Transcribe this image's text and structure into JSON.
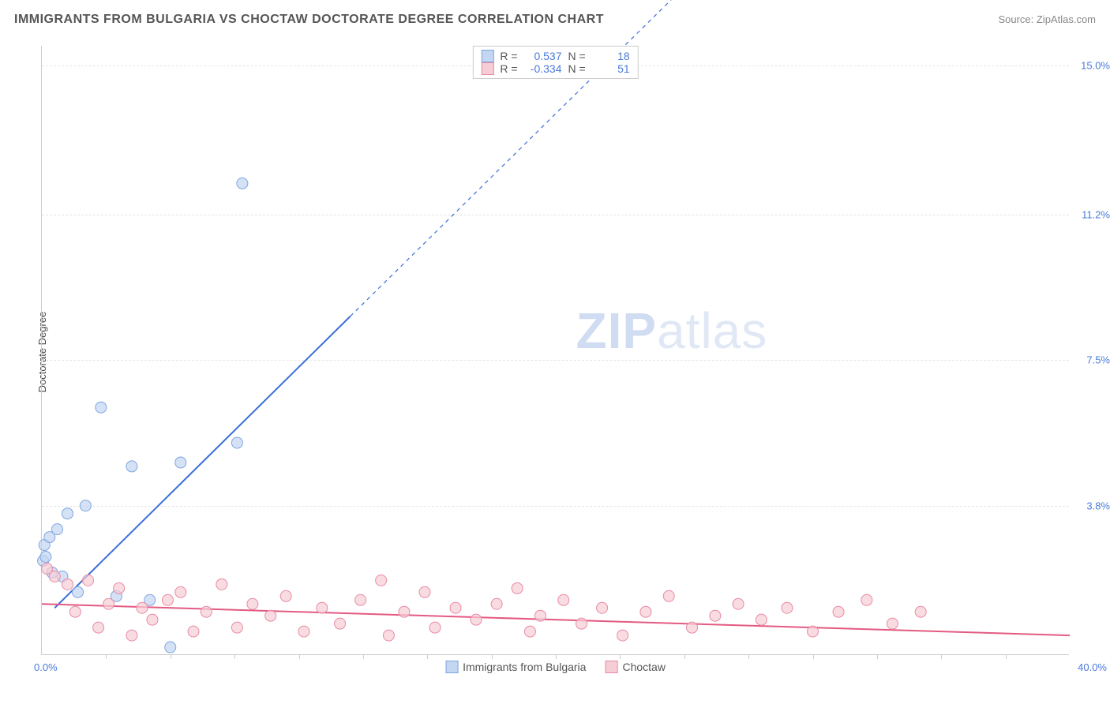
{
  "title": "IMMIGRANTS FROM BULGARIA VS CHOCTAW DOCTORATE DEGREE CORRELATION CHART",
  "source": "Source: ZipAtlas.com",
  "y_axis_label": "Doctorate Degree",
  "watermark_zip": "ZIP",
  "watermark_atlas": "atlas",
  "chart": {
    "type": "scatter",
    "background_color": "#ffffff",
    "grid_color": "#e5e5e5",
    "axis_color": "#cccccc",
    "tick_label_color": "#4a7bd8",
    "xlim": [
      0,
      40
    ],
    "ylim": [
      0,
      15.5
    ],
    "x_ticks_minor_step": 2.5,
    "y_gridlines": [
      3.8,
      7.5,
      11.2,
      15.0
    ],
    "y_tick_labels": [
      "3.8%",
      "7.5%",
      "11.2%",
      "15.0%"
    ],
    "x_min_label": "0.0%",
    "x_max_label": "40.0%",
    "marker_radius": 7,
    "marker_stroke_width": 1,
    "line_width": 2,
    "dashed_line_width": 1.2,
    "series": [
      {
        "name": "Immigrants from Bulgaria",
        "legend_label": "Immigrants from Bulgaria",
        "R": "0.537",
        "R_label": "R =",
        "N": "18",
        "N_label": "N =",
        "fill_color": "#c3d6f2",
        "stroke_color": "#7ea6e0",
        "line_color": "#3a6fd8",
        "marker": "circle",
        "points": [
          [
            0.05,
            2.4
          ],
          [
            0.1,
            2.8
          ],
          [
            0.3,
            3.0
          ],
          [
            0.15,
            2.5
          ],
          [
            0.6,
            3.2
          ],
          [
            1.0,
            3.6
          ],
          [
            1.4,
            1.6
          ],
          [
            1.7,
            3.8
          ],
          [
            2.3,
            6.3
          ],
          [
            2.9,
            1.5
          ],
          [
            3.5,
            4.8
          ],
          [
            4.2,
            1.4
          ],
          [
            5.0,
            0.2
          ],
          [
            5.4,
            4.9
          ],
          [
            7.6,
            5.4
          ],
          [
            7.8,
            12.0
          ],
          [
            0.4,
            2.1
          ],
          [
            0.8,
            2.0
          ]
        ],
        "regression": {
          "type": "linear",
          "x1": 0.5,
          "y1": 1.2,
          "x2": 25,
          "y2": 17.0,
          "solid_until_x": 12
        }
      },
      {
        "name": "Choctaw",
        "legend_label": "Choctaw",
        "R": "-0.334",
        "R_label": "R =",
        "N": "51",
        "N_label": "N =",
        "fill_color": "#f6cdd6",
        "stroke_color": "#e88ba3",
        "line_color": "#e35a82",
        "marker": "circle",
        "points": [
          [
            0.2,
            2.2
          ],
          [
            0.5,
            2.0
          ],
          [
            1.0,
            1.8
          ],
          [
            1.3,
            1.1
          ],
          [
            1.8,
            1.9
          ],
          [
            2.2,
            0.7
          ],
          [
            2.6,
            1.3
          ],
          [
            3.0,
            1.7
          ],
          [
            3.5,
            0.5
          ],
          [
            3.9,
            1.2
          ],
          [
            4.3,
            0.9
          ],
          [
            4.9,
            1.4
          ],
          [
            5.4,
            1.6
          ],
          [
            5.9,
            0.6
          ],
          [
            6.4,
            1.1
          ],
          [
            7.0,
            1.8
          ],
          [
            7.6,
            0.7
          ],
          [
            8.2,
            1.3
          ],
          [
            8.9,
            1.0
          ],
          [
            9.5,
            1.5
          ],
          [
            10.2,
            0.6
          ],
          [
            10.9,
            1.2
          ],
          [
            11.6,
            0.8
          ],
          [
            12.4,
            1.4
          ],
          [
            13.2,
            1.9
          ],
          [
            13.5,
            0.5
          ],
          [
            14.1,
            1.1
          ],
          [
            14.9,
            1.6
          ],
          [
            15.3,
            0.7
          ],
          [
            16.1,
            1.2
          ],
          [
            16.9,
            0.9
          ],
          [
            17.7,
            1.3
          ],
          [
            18.5,
            1.7
          ],
          [
            19.0,
            0.6
          ],
          [
            19.4,
            1.0
          ],
          [
            20.3,
            1.4
          ],
          [
            21.0,
            0.8
          ],
          [
            21.8,
            1.2
          ],
          [
            22.6,
            0.5
          ],
          [
            23.5,
            1.1
          ],
          [
            24.4,
            1.5
          ],
          [
            25.3,
            0.7
          ],
          [
            26.2,
            1.0
          ],
          [
            27.1,
            1.3
          ],
          [
            28.0,
            0.9
          ],
          [
            29.0,
            1.2
          ],
          [
            30.0,
            0.6
          ],
          [
            31.0,
            1.1
          ],
          [
            32.1,
            1.4
          ],
          [
            33.1,
            0.8
          ],
          [
            34.2,
            1.1
          ]
        ],
        "regression": {
          "type": "linear",
          "x1": 0,
          "y1": 1.3,
          "x2": 40,
          "y2": 0.5,
          "solid_until_x": 40
        }
      }
    ]
  }
}
